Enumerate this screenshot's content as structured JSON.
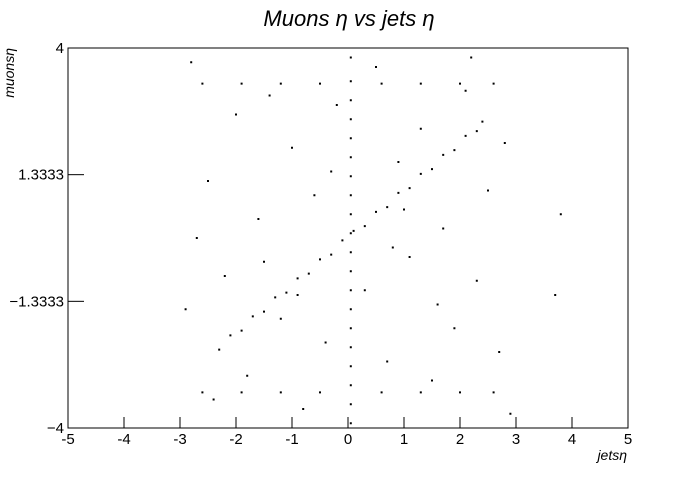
{
  "chart_data": {
    "type": "scatter",
    "title": "Muons   η   vs   jets   η",
    "x_label": "jetsη",
    "y_label": "muonsη",
    "color": "#000000",
    "xlim": [
      -5,
      5
    ],
    "xticks": [
      -5,
      -4,
      -3,
      -2,
      -1,
      0,
      1,
      2,
      3,
      4,
      5
    ],
    "ylim": [
      -4,
      4
    ],
    "yticks": [
      {
        "value": -4,
        "label": "−4"
      },
      {
        "value": -1.3333,
        "label": "−1.3333"
      },
      1.3333,
      4
    ],
    "x": [
      -2.3,
      -2.1,
      -1.9,
      -1.7,
      -1.5,
      -1.3,
      -1.1,
      -0.9,
      -0.7,
      -0.5,
      -0.3,
      -0.1,
      0.1,
      0.3,
      0.5,
      0.7,
      0.9,
      1.1,
      1.3,
      1.5,
      1.7,
      1.9,
      2.1,
      2.3,
      2.4,
      0.05,
      0.05,
      0.05,
      0.05,
      0.05,
      0.05,
      0.05,
      0.05,
      0.05,
      0.05,
      0.05,
      0.05,
      0.05,
      0.05,
      0.05,
      0.05,
      0.05,
      0.05,
      0.05,
      0.05,
      -2.6,
      -1.9,
      -1.2,
      -0.5,
      0.6,
      1.3,
      2.0,
      2.6,
      -2.6,
      -1.9,
      -1.2,
      -0.5,
      0.6,
      1.3,
      2.0,
      2.6,
      -2.8,
      -2.5,
      -2.2,
      -2.0,
      -1.8,
      -1.6,
      -1.4,
      -1.2,
      -1.0,
      -0.8,
      -0.6,
      -0.4,
      -0.2,
      0.3,
      0.5,
      0.7,
      0.9,
      1.1,
      1.3,
      1.5,
      1.7,
      1.9,
      2.1,
      2.3,
      2.5,
      2.7,
      2.8,
      -2.9,
      -2.7,
      2.9,
      -1.5,
      1.0,
      -0.9,
      0.8,
      -2.4,
      2.2,
      -0.3,
      1.6,
      3.8,
      3.7
    ],
    "y": [
      -2.35,
      -2.05,
      -1.95,
      -1.65,
      -1.55,
      -1.25,
      -1.15,
      -0.85,
      -0.75,
      -0.45,
      -0.35,
      -0.05,
      0.15,
      0.25,
      0.55,
      0.65,
      0.95,
      1.05,
      1.35,
      1.45,
      1.75,
      1.85,
      2.15,
      2.25,
      2.45,
      -3.9,
      -3.5,
      -3.1,
      -2.7,
      -2.3,
      -1.9,
      -1.5,
      -1.1,
      -0.7,
      -0.3,
      0.1,
      0.5,
      0.9,
      1.3,
      1.7,
      2.1,
      2.5,
      2.9,
      3.3,
      3.8,
      3.25,
      3.25,
      3.25,
      3.25,
      3.25,
      3.25,
      3.25,
      3.25,
      -3.25,
      -3.25,
      -3.25,
      -3.25,
      -3.25,
      -3.25,
      -3.25,
      -3.25,
      3.7,
      1.2,
      -0.8,
      2.6,
      -2.9,
      0.4,
      3.0,
      -1.7,
      1.9,
      -3.6,
      0.9,
      -2.2,
      2.8,
      -1.1,
      3.6,
      -2.6,
      1.6,
      -0.4,
      2.3,
      -3.0,
      0.2,
      -1.9,
      3.1,
      -0.9,
      1.0,
      -2.4,
      2.0,
      -1.5,
      0.0,
      -3.7,
      -0.5,
      0.6,
      -1.2,
      -0.2,
      -3.4,
      3.8,
      1.4,
      -1.4,
      0.5,
      -1.2
    ]
  }
}
